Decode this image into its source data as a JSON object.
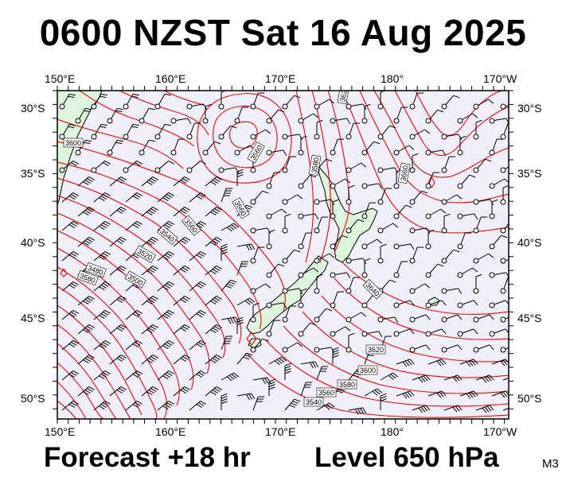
{
  "header": {
    "title": "0600 NZST Sat 16 Aug 2025"
  },
  "footer": {
    "forecast": "Forecast +18 hr",
    "level": "Level 650 hPa",
    "code": "M3"
  },
  "axes": {
    "lon_labels": [
      "150°E",
      "160°E",
      "170°E",
      "180°",
      "170°W"
    ],
    "lat_labels": [
      "30°S",
      "35°S",
      "40°S",
      "45°S",
      "50°S"
    ]
  },
  "map": {
    "lon_range": [
      150,
      191.5
    ],
    "lat_range": [
      -29,
      -51.5
    ],
    "contour_labels": [
      "3600",
      "3560",
      "3620",
      "3580",
      "3560",
      "3540",
      "3560",
      "3520",
      "3500",
      "3480",
      "3580",
      "3640",
      "3660",
      "3620",
      "3600",
      "3580",
      "3560",
      "3540"
    ],
    "colors": {
      "ocean": "#f0f0fa",
      "land": "#ddf5dd",
      "contour": "#ff0000",
      "coast": "#000000",
      "frame": "#000000"
    }
  }
}
